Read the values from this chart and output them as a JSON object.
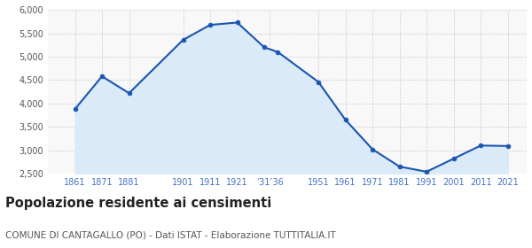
{
  "years": [
    1861,
    1871,
    1881,
    1901,
    1911,
    1921,
    1931,
    1936,
    1951,
    1961,
    1971,
    1981,
    1991,
    2001,
    2011,
    2021
  ],
  "population": [
    3880,
    4580,
    4220,
    5360,
    5680,
    5730,
    5200,
    5100,
    4460,
    3650,
    3020,
    2650,
    2540,
    2820,
    3100,
    3090
  ],
  "ylim": [
    2500,
    6000
  ],
  "yticks": [
    2500,
    3000,
    3500,
    4000,
    4500,
    5000,
    5500,
    6000
  ],
  "xlim_left": 1851,
  "xlim_right": 2028,
  "line_color": "#1a56b0",
  "fill_color": "#daeaf8",
  "marker_color": "#1a56b0",
  "grid_color": "#cccccc",
  "bg_color": "#f8f8f8",
  "title": "Popolazione residente ai censimenti",
  "subtitle": "COMUNE DI CANTAGALLO (PO) - Dati ISTAT - Elaborazione TUTTITALIA.IT",
  "title_fontsize": 10.5,
  "subtitle_fontsize": 7.5,
  "tick_label_color": "#4472c4",
  "shown_tick_years": [
    1861,
    1871,
    1881,
    1901,
    1911,
    1921,
    1933,
    1951,
    1961,
    1971,
    1981,
    1991,
    2001,
    2011,
    2021
  ],
  "shown_tick_labels": [
    "1861",
    "1871",
    "1881",
    "1901",
    "1911",
    "1921",
    "’31’36",
    "1951",
    "1961",
    "1971",
    "1981",
    "1991",
    "2001",
    "2011",
    "2021"
  ]
}
